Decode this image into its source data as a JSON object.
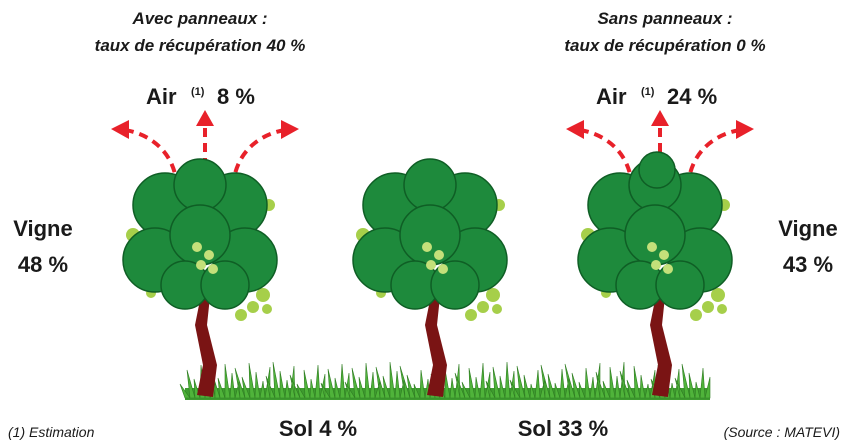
{
  "left": {
    "title_line1": "Avec panneaux :",
    "title_line2": "taux de récupération 40 %",
    "air_label": "Air",
    "air_note": "(1)",
    "air_value": "8 %",
    "vine_label": "Vigne",
    "vine_value": "48 %"
  },
  "right": {
    "title_line1": "Sans panneaux :",
    "title_line2": "taux de récupération 0 %",
    "air_label": "Air",
    "air_note": "(1)",
    "air_value": "24 %",
    "vine_label": "Vigne",
    "vine_value": "43 %"
  },
  "soil": {
    "left": "Sol 4 %",
    "right": "Sol 33 %"
  },
  "footnote": "(1) Estimation",
  "source": "(Source : MATEVI)"
}
